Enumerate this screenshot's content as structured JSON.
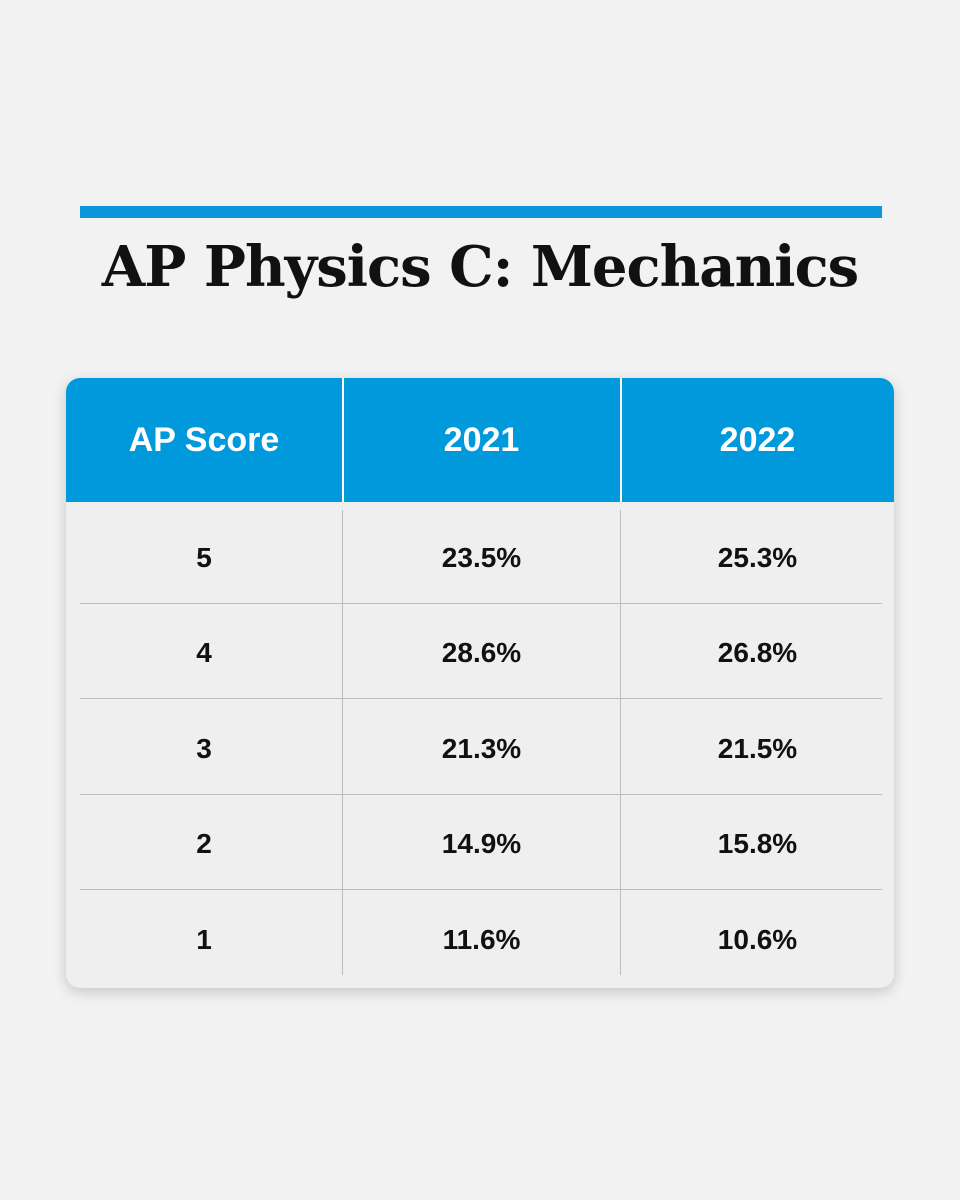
{
  "title": "AP Physics C: Mechanics",
  "table": {
    "header": [
      "AP Score",
      "2021",
      "2022"
    ],
    "rows": [
      [
        "5",
        "23.5%",
        "25.3%"
      ],
      [
        "4",
        "28.6%",
        "26.8%"
      ],
      [
        "3",
        "21.3%",
        "21.5%"
      ],
      [
        "2",
        "14.9%",
        "15.8%"
      ],
      [
        "1",
        "11.6%",
        "10.6%"
      ]
    ]
  }
}
